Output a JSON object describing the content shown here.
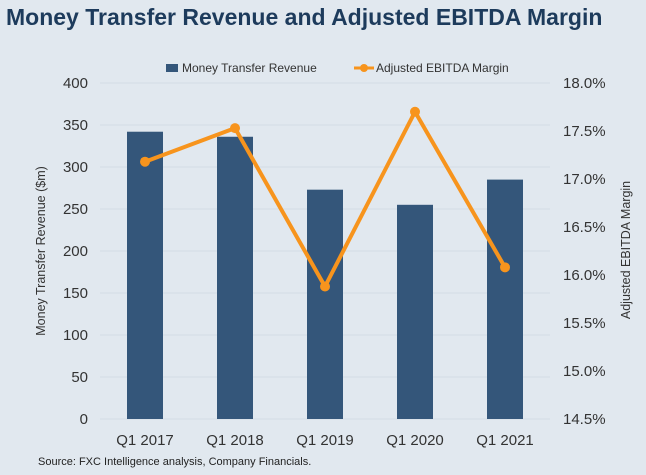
{
  "chart_data": {
    "type": "bar+line",
    "title": "Money Transfer Revenue and Adjusted EBITDA Margin",
    "categories": [
      "Q1 2017",
      "Q1 2018",
      "Q1 2019",
      "Q1 2020",
      "Q1 2021"
    ],
    "series": [
      {
        "name": "Money Transfer Revenue",
        "type": "bar",
        "axis": "left",
        "color": "#34567a",
        "values": [
          342,
          336,
          273,
          255,
          285
        ]
      },
      {
        "name": "Adjusted EBITDA Margin",
        "type": "line",
        "axis": "right",
        "color": "#f7941d",
        "values": [
          17.18,
          17.53,
          15.88,
          17.7,
          16.08
        ]
      }
    ],
    "ylabel": "Money Transfer Revenue ($m)",
    "y2label": "Adjusted EBITDA Margin",
    "ylim": [
      0,
      400
    ],
    "y_ticks": [
      "0",
      "50",
      "100",
      "150",
      "200",
      "250",
      "300",
      "350",
      "400"
    ],
    "y2lim": [
      14.5,
      18.0
    ],
    "y2_ticks": [
      "14.5%",
      "15.0%",
      "15.5%",
      "16.0%",
      "16.5%",
      "17.0%",
      "17.5%",
      "18.0%"
    ],
    "grid": true,
    "legend": "top"
  },
  "source": "Source: FXC Intelligence analysis, Company Financials."
}
